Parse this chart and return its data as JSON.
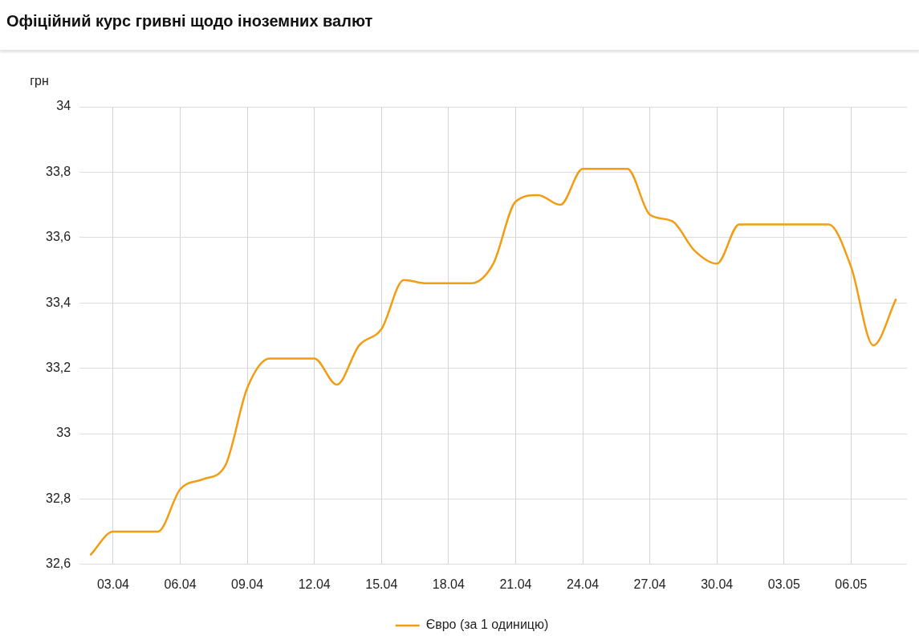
{
  "chart_data": {
    "type": "line",
    "title": "Офіційний курс гривні щодо іноземних валют",
    "ylabel": "грн",
    "categories": [
      null,
      "03.04",
      null,
      null,
      "06.04",
      null,
      null,
      "09.04",
      null,
      null,
      "12.04",
      null,
      null,
      "15.04",
      null,
      null,
      "18.04",
      null,
      null,
      "21.04",
      null,
      null,
      "24.04",
      null,
      null,
      "27.04",
      null,
      null,
      "30.04",
      null,
      null,
      "03.05",
      null,
      null,
      "06.05",
      null,
      null
    ],
    "series": [
      {
        "name": "Євро (за 1 одиницю)",
        "color": "#f39c12",
        "values": [
          32.63,
          32.7,
          32.7,
          32.7,
          32.83,
          32.86,
          32.9,
          33.14,
          33.23,
          33.23,
          33.23,
          33.15,
          33.27,
          33.32,
          33.47,
          33.46,
          33.46,
          33.46,
          33.52,
          33.71,
          33.73,
          33.7,
          33.81,
          33.81,
          33.81,
          33.67,
          33.65,
          33.56,
          33.52,
          33.64,
          33.64,
          33.64,
          33.64,
          33.64,
          33.51,
          33.27,
          33.41
        ]
      }
    ],
    "ylim": [
      32.6,
      34
    ],
    "yticks": [
      {
        "value": 32.6,
        "label": "32,6"
      },
      {
        "value": 32.8,
        "label": "32,8"
      },
      33,
      {
        "value": 33.2,
        "label": "33,2"
      },
      {
        "value": 33.4,
        "label": "33,4"
      },
      {
        "value": 33.6,
        "label": "33,6"
      },
      {
        "value": 33.8,
        "label": "33,8"
      },
      34
    ],
    "grid": true,
    "legend": "bottom",
    "marker": "none",
    "line_style": "solid"
  }
}
